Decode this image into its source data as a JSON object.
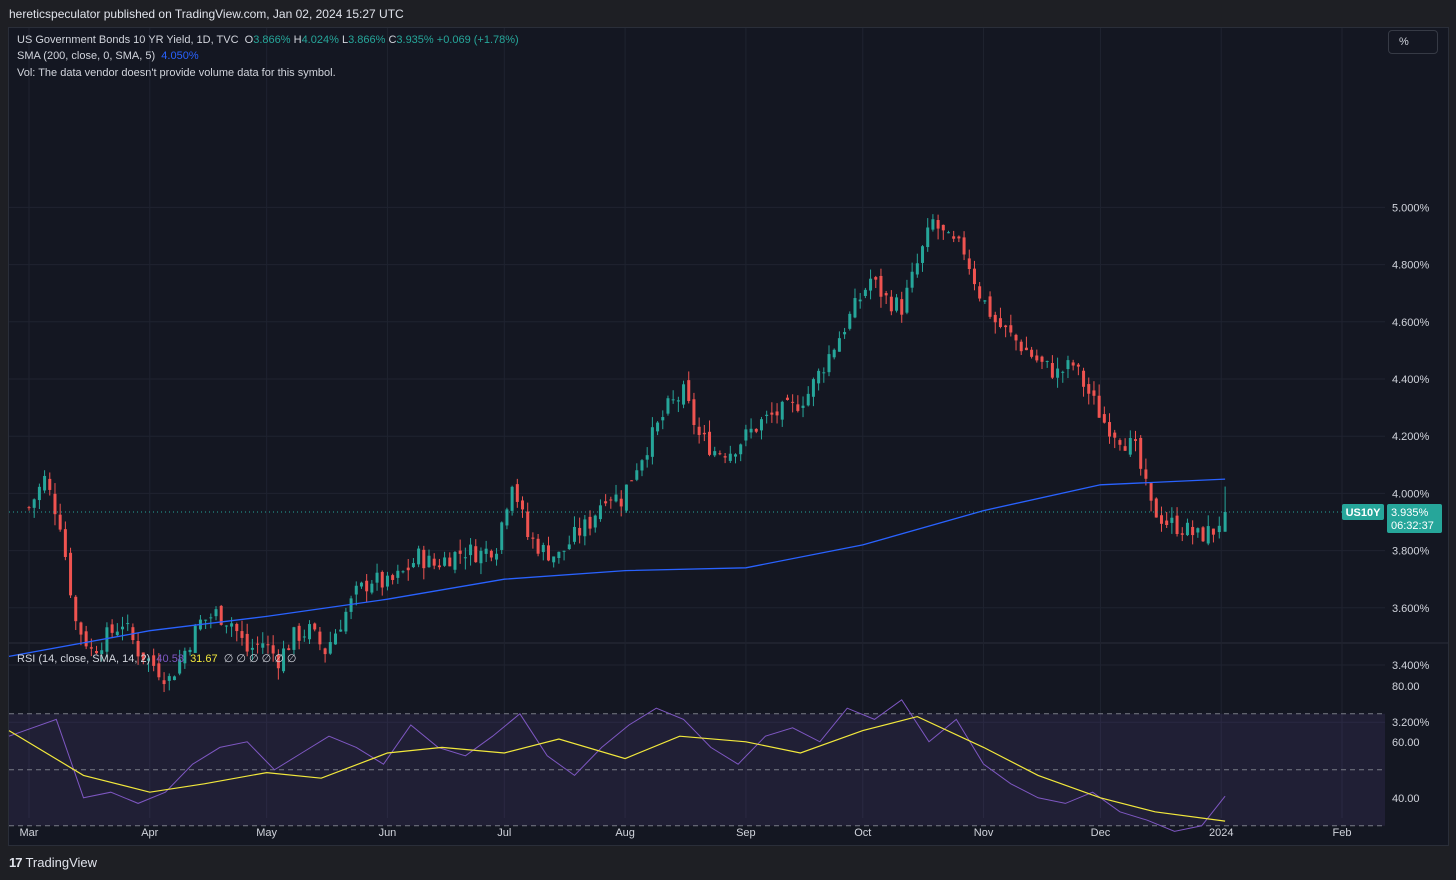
{
  "header": {
    "publish_text": "hereticspeculator published on TradingView.com, Jan 02, 2024 15:27 UTC"
  },
  "legend": {
    "symbol": "US Government Bonds 10 YR Yield, 1D, TVC",
    "o_label": "O",
    "o_value": "3.866%",
    "h_label": "H",
    "h_value": "4.024%",
    "l_label": "L",
    "l_value": "3.866%",
    "c_label": "C",
    "c_value": "3.935%",
    "change": "+0.069 (+1.78%)",
    "sma_label": "SMA (200, close, 0, SMA, 5)",
    "sma_value": "4.050%",
    "vol_text": "Vol: The data vendor doesn't provide volume data for this symbol.",
    "rsi_label": "RSI (14, close, SMA, 14, 2)",
    "rsi_value": "40.58",
    "rsi_sma_value": "31.67",
    "rsi_extra": "∅ ∅ ∅ ∅ ∅ ∅"
  },
  "percent_button": "%",
  "badge": {
    "symbol": "US10Y",
    "price": "3.935%",
    "countdown": "06:32:37"
  },
  "footer": {
    "logo_glyph": "17",
    "brand": "TradingView"
  },
  "colors": {
    "up": "#26a69a",
    "down": "#ef5350",
    "sma": "#2962ff",
    "rsi": "#7e57c2",
    "rsi_sma": "#f2e83c",
    "background": "#141722"
  },
  "chart_data": [
    {
      "type": "candlestick",
      "title": "US Government Bonds 10 YR Yield, 1D, TVC",
      "x_ticks": [
        "Mar",
        "Apr",
        "May",
        "Jun",
        "Jul",
        "Aug",
        "Sep",
        "Oct",
        "Nov",
        "Dec",
        "2024",
        "Feb"
      ],
      "y_ticks": [
        "3.200%",
        "3.400%",
        "3.600%",
        "3.800%",
        "4.000%",
        "4.200%",
        "4.400%",
        "4.600%",
        "4.800%",
        "5.000%"
      ],
      "ylim": [
        3.1,
        5.1
      ],
      "close_series": {
        "x": [
          "2023-03-01",
          "2023-03-05",
          "2023-03-09",
          "2023-03-13",
          "2023-03-17",
          "2023-03-21",
          "2023-03-25",
          "2023-03-29",
          "2023-04-02",
          "2023-04-06",
          "2023-04-10",
          "2023-04-14",
          "2023-04-18",
          "2023-04-22",
          "2023-04-26",
          "2023-04-30",
          "2023-05-04",
          "2023-05-08",
          "2023-05-12",
          "2023-05-16",
          "2023-05-20",
          "2023-05-24",
          "2023-05-28",
          "2023-06-01",
          "2023-06-05",
          "2023-06-09",
          "2023-06-13",
          "2023-06-17",
          "2023-06-21",
          "2023-06-25",
          "2023-06-29",
          "2023-07-03",
          "2023-07-07",
          "2023-07-11",
          "2023-07-15",
          "2023-07-19",
          "2023-07-23",
          "2023-07-27",
          "2023-07-31",
          "2023-08-04",
          "2023-08-08",
          "2023-08-12",
          "2023-08-16",
          "2023-08-20",
          "2023-08-24",
          "2023-08-28",
          "2023-09-01",
          "2023-09-05",
          "2023-09-09",
          "2023-09-13",
          "2023-09-17",
          "2023-09-21",
          "2023-09-25",
          "2023-09-29",
          "2023-10-03",
          "2023-10-07",
          "2023-10-11",
          "2023-10-15",
          "2023-10-19",
          "2023-10-23",
          "2023-10-27",
          "2023-10-31",
          "2023-11-04",
          "2023-11-08",
          "2023-11-12",
          "2023-11-16",
          "2023-11-20",
          "2023-11-24",
          "2023-11-28",
          "2023-12-02",
          "2023-12-06",
          "2023-12-10",
          "2023-12-14",
          "2023-12-18",
          "2023-12-22",
          "2023-12-26",
          "2023-12-30",
          "2024-01-02"
        ],
        "y": [
          3.95,
          4.05,
          3.9,
          3.55,
          3.45,
          3.5,
          3.55,
          3.45,
          3.4,
          3.35,
          3.45,
          3.55,
          3.58,
          3.55,
          3.45,
          3.48,
          3.42,
          3.5,
          3.52,
          3.45,
          3.55,
          3.65,
          3.7,
          3.68,
          3.72,
          3.78,
          3.75,
          3.78,
          3.8,
          3.79,
          3.82,
          4.05,
          3.85,
          3.8,
          3.78,
          3.85,
          3.9,
          4.0,
          3.98,
          4.1,
          4.2,
          4.3,
          4.35,
          4.2,
          4.15,
          4.15,
          4.2,
          4.25,
          4.28,
          4.3,
          4.35,
          4.45,
          4.55,
          4.65,
          4.75,
          4.68,
          4.65,
          4.8,
          4.95,
          4.88,
          4.85,
          4.7,
          4.6,
          4.55,
          4.5,
          4.45,
          4.42,
          4.45,
          4.35,
          4.25,
          4.2,
          4.15,
          3.95,
          3.9,
          3.88,
          3.85,
          3.87,
          3.935
        ]
      },
      "sma_series": {
        "name": "SMA (200, close, 0, SMA, 5)",
        "x": [
          "2023-03-01",
          "2023-04-01",
          "2023-05-01",
          "2023-06-01",
          "2023-07-01",
          "2023-08-01",
          "2023-09-01",
          "2023-10-01",
          "2023-11-01",
          "2023-12-01",
          "2024-01-02"
        ],
        "y": [
          3.43,
          3.52,
          3.57,
          3.63,
          3.7,
          3.73,
          3.74,
          3.82,
          3.94,
          4.03,
          4.05
        ]
      },
      "last_value": 3.935
    },
    {
      "type": "line",
      "title": "RSI (14, close, SMA, 14, 2)",
      "y_ticks": [
        "40.00",
        "60.00",
        "80.00"
      ],
      "ylim": [
        25,
        83
      ],
      "bands": [
        30,
        50,
        70
      ],
      "series": [
        {
          "name": "RSI (14, close, SMA, 14, 2)",
          "x": [
            "2023-03-01",
            "2023-03-08",
            "2023-03-15",
            "2023-03-22",
            "2023-03-29",
            "2023-04-05",
            "2023-04-12",
            "2023-04-19",
            "2023-04-26",
            "2023-05-03",
            "2023-05-10",
            "2023-05-17",
            "2023-05-24",
            "2023-05-31",
            "2023-06-07",
            "2023-06-14",
            "2023-06-21",
            "2023-06-28",
            "2023-07-05",
            "2023-07-12",
            "2023-07-19",
            "2023-07-26",
            "2023-08-02",
            "2023-08-09",
            "2023-08-16",
            "2023-08-23",
            "2023-08-30",
            "2023-09-06",
            "2023-09-13",
            "2023-09-20",
            "2023-09-27",
            "2023-10-04",
            "2023-10-11",
            "2023-10-18",
            "2023-10-25",
            "2023-11-01",
            "2023-11-08",
            "2023-11-15",
            "2023-11-22",
            "2023-11-29",
            "2023-12-06",
            "2023-12-13",
            "2023-12-20",
            "2023-12-27",
            "2024-01-02"
          ],
          "y": [
            62,
            68,
            40,
            42,
            38,
            42,
            52,
            58,
            60,
            50,
            56,
            62,
            58,
            52,
            66,
            58,
            55,
            62,
            70,
            55,
            48,
            58,
            66,
            72,
            68,
            58,
            52,
            62,
            65,
            60,
            72,
            68,
            75,
            60,
            68,
            52,
            45,
            40,
            38,
            42,
            35,
            32,
            28,
            30,
            40.58
          ]
        },
        {
          "name": "SMA",
          "x": [
            "2023-03-01",
            "2023-03-15",
            "2023-04-01",
            "2023-04-15",
            "2023-05-01",
            "2023-05-15",
            "2023-06-01",
            "2023-06-15",
            "2023-07-01",
            "2023-07-15",
            "2023-08-01",
            "2023-08-15",
            "2023-09-01",
            "2023-09-15",
            "2023-10-01",
            "2023-10-15",
            "2023-11-01",
            "2023-11-15",
            "2023-12-01",
            "2023-12-15",
            "2024-01-02"
          ],
          "y": [
            64,
            48,
            42,
            45,
            49,
            47,
            56,
            58,
            56,
            61,
            54,
            62,
            60,
            56,
            64,
            69,
            58,
            48,
            40,
            35,
            31.67
          ]
        }
      ]
    }
  ]
}
